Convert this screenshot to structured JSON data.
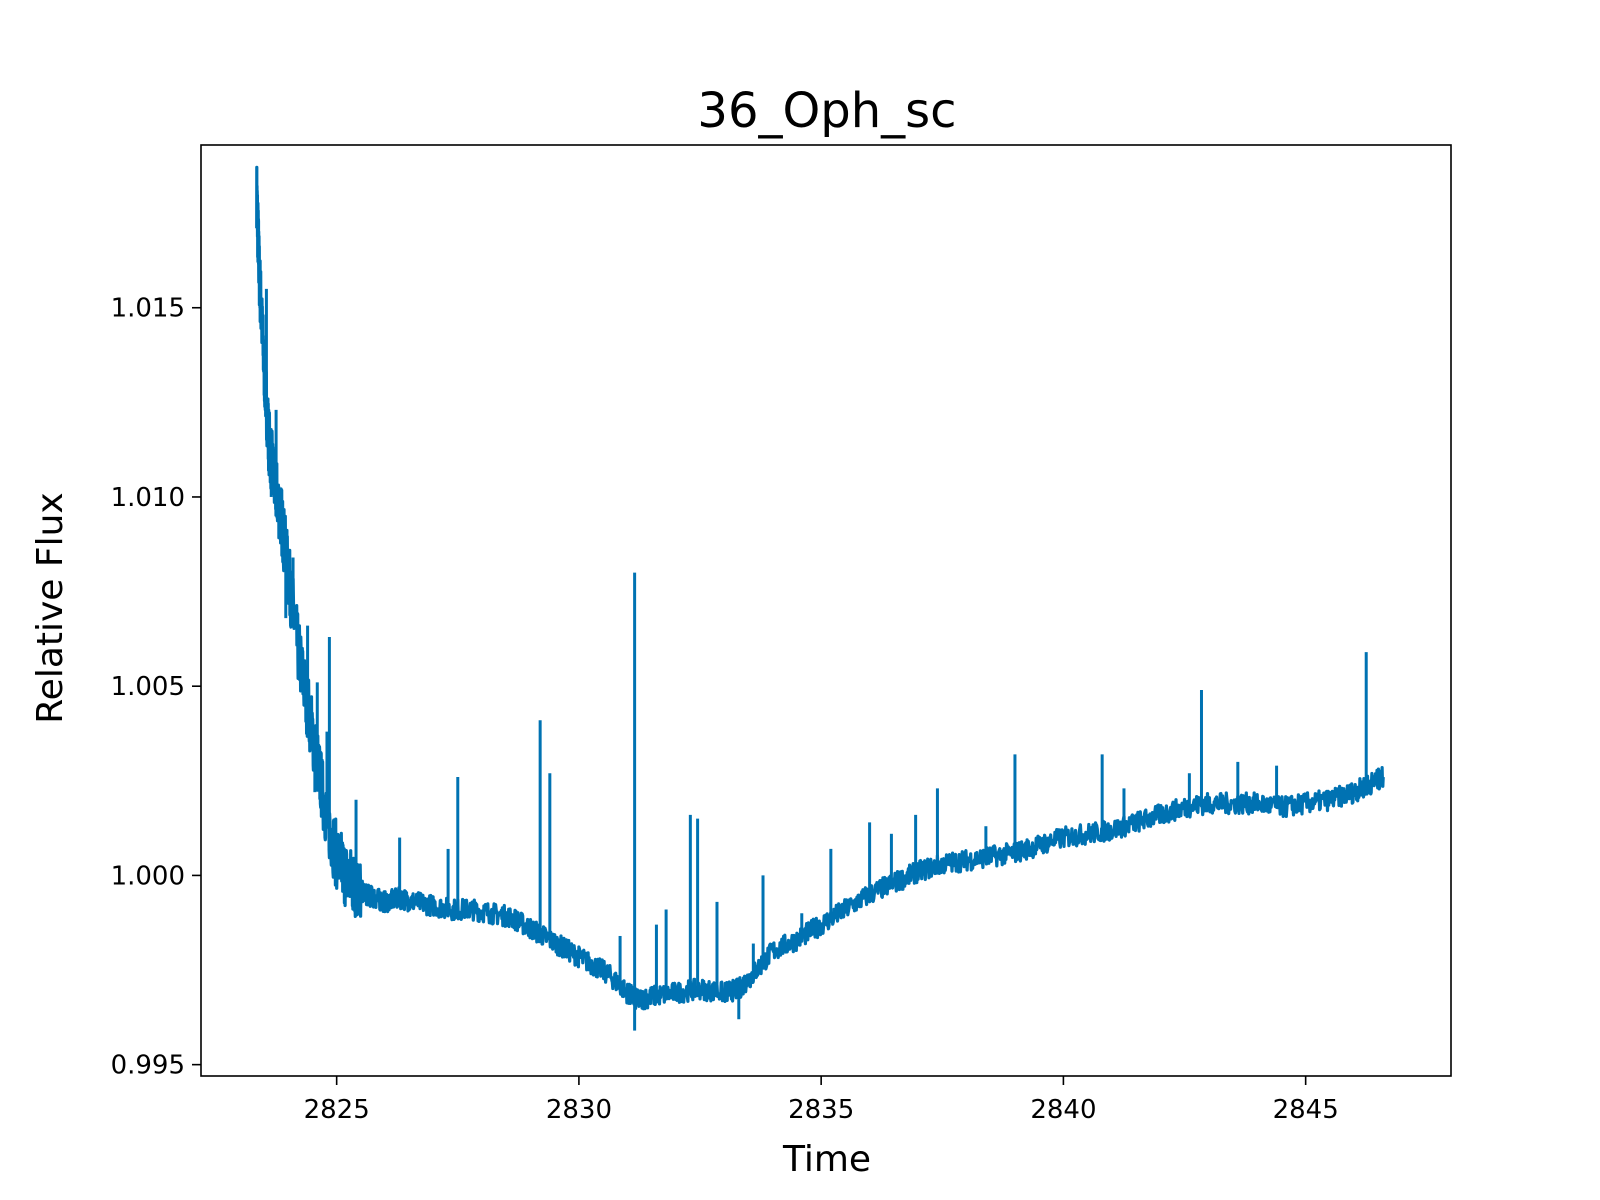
{
  "chart_data": {
    "type": "line",
    "title": "36_Oph_sc",
    "xlabel": "Time",
    "ylabel": "Relative Flux",
    "xlim": [
      2822.2,
      2848.0
    ],
    "ylim": [
      0.9947,
      1.0193
    ],
    "xticks": [
      2825,
      2830,
      2835,
      2840,
      2845
    ],
    "xtick_labels": [
      "2825",
      "2830",
      "2835",
      "2840",
      "2845"
    ],
    "yticks": [
      0.995,
      1.0,
      1.005,
      1.01,
      1.015
    ],
    "ytick_labels": [
      "0.995",
      "1.000",
      "1.005",
      "1.010",
      "1.015"
    ],
    "grid": false,
    "series": [
      {
        "color": "#0072b2",
        "x": [
          2823.35,
          2823.4,
          2823.5,
          2823.6,
          2823.7,
          2823.85,
          2824.0,
          2824.2,
          2824.4,
          2824.6,
          2824.8,
          2825.0,
          2825.2,
          2825.4,
          2825.6,
          2825.8,
          2826.0,
          2826.3,
          2826.6,
          2827.0,
          2827.4,
          2827.8,
          2828.2,
          2828.6,
          2829.0,
          2829.4,
          2829.8,
          2830.2,
          2830.6,
          2831.0,
          2831.2,
          2831.5,
          2832.0,
          2832.5,
          2833.0,
          2833.3,
          2833.6,
          2834.0,
          2834.5,
          2835.0,
          2835.5,
          2836.0,
          2836.5,
          2837.0,
          2837.5,
          2838.0,
          2838.5,
          2839.0,
          2839.5,
          2840.0,
          2840.5,
          2841.0,
          2841.5,
          2842.0,
          2842.5,
          2843.0,
          2843.5,
          2844.0,
          2844.5,
          2845.0,
          2845.5,
          2846.0,
          2846.3,
          2846.6
        ],
        "y": [
          1.018,
          1.016,
          1.0135,
          1.0115,
          1.0105,
          1.0095,
          1.008,
          1.006,
          1.0045,
          1.003,
          1.0015,
          1.0005,
          1.0,
          0.9997,
          0.9995,
          0.9994,
          0.9993,
          0.9994,
          0.9993,
          0.9992,
          0.9991,
          0.9991,
          0.999,
          0.9989,
          0.9986,
          0.9983,
          0.998,
          0.9977,
          0.9974,
          0.9969,
          0.9967,
          0.9968,
          0.9969,
          0.997,
          0.9969,
          0.997,
          0.9974,
          0.998,
          0.9983,
          0.9987,
          0.9991,
          0.9995,
          0.9998,
          1.0001,
          1.0003,
          1.0004,
          1.0005,
          1.0006,
          1.0008,
          1.001,
          1.0011,
          1.0012,
          1.0014,
          1.0016,
          1.0018,
          1.0019,
          1.0019,
          1.0019,
          1.0018,
          1.0019,
          1.002,
          1.0022,
          1.0024,
          1.0026
        ]
      }
    ],
    "spikes": [
      {
        "x": 2823.55,
        "y": 1.0155
      },
      {
        "x": 2823.75,
        "y": 1.0123
      },
      {
        "x": 2824.1,
        "y": 1.0084
      },
      {
        "x": 2824.4,
        "y": 1.0066
      },
      {
        "x": 2824.6,
        "y": 1.0051
      },
      {
        "x": 2824.8,
        "y": 1.0038
      },
      {
        "x": 2824.85,
        "y": 1.0063
      },
      {
        "x": 2825.4,
        "y": 1.002
      },
      {
        "x": 2826.3,
        "y": 1.001
      },
      {
        "x": 2827.3,
        "y": 1.0007
      },
      {
        "x": 2827.5,
        "y": 1.0026
      },
      {
        "x": 2829.2,
        "y": 1.0041
      },
      {
        "x": 2829.4,
        "y": 1.0027
      },
      {
        "x": 2830.85,
        "y": 0.9984
      },
      {
        "x": 2831.15,
        "y": 1.008
      },
      {
        "x": 2831.6,
        "y": 0.9987
      },
      {
        "x": 2831.8,
        "y": 0.9991
      },
      {
        "x": 2832.3,
        "y": 1.0016
      },
      {
        "x": 2832.45,
        "y": 1.0015
      },
      {
        "x": 2832.85,
        "y": 0.9993
      },
      {
        "x": 2833.6,
        "y": 0.9982
      },
      {
        "x": 2833.8,
        "y": 1.0
      },
      {
        "x": 2834.6,
        "y": 0.999
      },
      {
        "x": 2835.2,
        "y": 1.0007
      },
      {
        "x": 2836.0,
        "y": 1.0014
      },
      {
        "x": 2836.45,
        "y": 1.0011
      },
      {
        "x": 2836.95,
        "y": 1.0016
      },
      {
        "x": 2837.4,
        "y": 1.0023
      },
      {
        "x": 2838.4,
        "y": 1.0013
      },
      {
        "x": 2839.0,
        "y": 1.0032
      },
      {
        "x": 2840.8,
        "y": 1.0032
      },
      {
        "x": 2841.25,
        "y": 1.0023
      },
      {
        "x": 2842.6,
        "y": 1.0027
      },
      {
        "x": 2842.85,
        "y": 1.0049
      },
      {
        "x": 2843.6,
        "y": 1.003
      },
      {
        "x": 2844.4,
        "y": 1.0029
      },
      {
        "x": 2846.25,
        "y": 1.0059
      }
    ],
    "minima": [
      {
        "x": 2823.65,
        "y": 1.01
      },
      {
        "x": 2823.95,
        "y": 1.0068
      },
      {
        "x": 2824.3,
        "y": 1.0053
      },
      {
        "x": 2824.55,
        "y": 1.0022
      },
      {
        "x": 2831.15,
        "y": 0.9959
      },
      {
        "x": 2833.3,
        "y": 0.9962
      }
    ]
  }
}
